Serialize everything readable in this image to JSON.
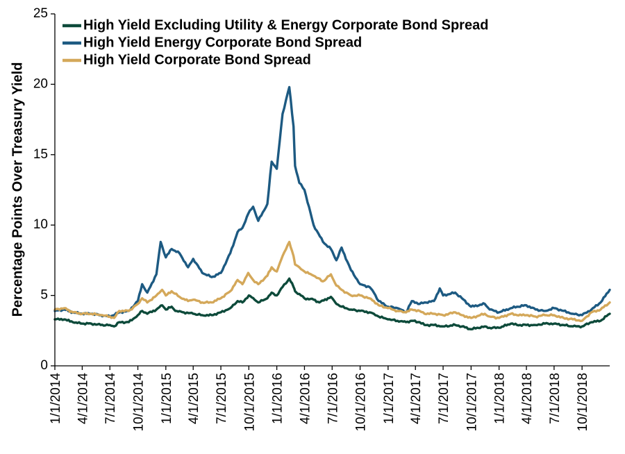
{
  "chart_data": {
    "type": "line",
    "title": "",
    "xlabel": "",
    "ylabel": "Percentage Points Over Treasury Yield",
    "ylim": [
      0,
      25
    ],
    "yticks": [
      "0",
      "5",
      "10",
      "15",
      "20",
      "25"
    ],
    "xlim": [
      "2014-01-01",
      "2018-12-31"
    ],
    "xticks": [
      "1/1/2014",
      "4/1/2014",
      "7/1/2014",
      "10/1/2014",
      "1/1/2015",
      "4/1/2015",
      "7/1/2015",
      "10/1/2015",
      "1/1/2016",
      "4/1/2016",
      "7/1/2016",
      "10/1/2016",
      "1/1/2017",
      "4/1/2017",
      "7/1/2017",
      "10/1/2017",
      "1/1/2018",
      "4/1/2018",
      "7/1/2018",
      "10/1/2018"
    ],
    "grid": false,
    "legend_position": "top-left",
    "series": [
      {
        "name": "High Yield Excluding Utility & Energy Corporate Bond Spread",
        "color": "#0d4a3a",
        "points": [
          [
            "2014-01-01",
            3.3
          ],
          [
            "2014-02-01",
            3.3
          ],
          [
            "2014-03-01",
            3.1
          ],
          [
            "2014-04-01",
            3.0
          ],
          [
            "2014-05-01",
            3.0
          ],
          [
            "2014-06-01",
            2.9
          ],
          [
            "2014-07-01",
            2.9
          ],
          [
            "2014-07-15",
            2.8
          ],
          [
            "2014-08-01",
            3.1
          ],
          [
            "2014-09-01",
            3.1
          ],
          [
            "2014-10-01",
            3.6
          ],
          [
            "2014-10-15",
            3.9
          ],
          [
            "2014-11-01",
            3.7
          ],
          [
            "2014-12-01",
            4.0
          ],
          [
            "2014-12-20",
            4.3
          ],
          [
            "2015-01-01",
            4.0
          ],
          [
            "2015-01-20",
            4.2
          ],
          [
            "2015-02-01",
            3.9
          ],
          [
            "2015-03-01",
            3.8
          ],
          [
            "2015-04-01",
            3.7
          ],
          [
            "2015-05-01",
            3.6
          ],
          [
            "2015-06-01",
            3.6
          ],
          [
            "2015-07-01",
            3.8
          ],
          [
            "2015-08-01",
            4.1
          ],
          [
            "2015-08-25",
            4.6
          ],
          [
            "2015-09-10",
            4.5
          ],
          [
            "2015-10-01",
            5.0
          ],
          [
            "2015-10-20",
            4.7
          ],
          [
            "2015-11-01",
            4.5
          ],
          [
            "2015-12-01",
            4.8
          ],
          [
            "2015-12-15",
            5.2
          ],
          [
            "2016-01-01",
            5.0
          ],
          [
            "2016-01-20",
            5.6
          ],
          [
            "2016-02-11",
            6.2
          ],
          [
            "2016-02-25",
            5.6
          ],
          [
            "2016-03-01",
            5.3
          ],
          [
            "2016-03-20",
            5.0
          ],
          [
            "2016-04-01",
            4.8
          ],
          [
            "2016-05-01",
            4.7
          ],
          [
            "2016-05-20",
            4.5
          ],
          [
            "2016-06-27",
            4.9
          ],
          [
            "2016-07-15",
            4.4
          ],
          [
            "2016-08-01",
            4.2
          ],
          [
            "2016-09-01",
            4.0
          ],
          [
            "2016-10-01",
            3.9
          ],
          [
            "2016-11-01",
            3.8
          ],
          [
            "2016-11-15",
            3.7
          ],
          [
            "2016-12-01",
            3.5
          ],
          [
            "2017-01-01",
            3.3
          ],
          [
            "2017-02-01",
            3.2
          ],
          [
            "2017-03-01",
            3.1
          ],
          [
            "2017-03-20",
            3.2
          ],
          [
            "2017-04-15",
            3.1
          ],
          [
            "2017-05-01",
            2.9
          ],
          [
            "2017-06-01",
            2.9
          ],
          [
            "2017-07-01",
            2.8
          ],
          [
            "2017-08-10",
            2.9
          ],
          [
            "2017-09-01",
            2.8
          ],
          [
            "2017-10-01",
            2.6
          ],
          [
            "2017-11-15",
            2.8
          ],
          [
            "2017-12-01",
            2.7
          ],
          [
            "2018-01-01",
            2.7
          ],
          [
            "2018-02-09",
            3.0
          ],
          [
            "2018-03-01",
            2.9
          ],
          [
            "2018-04-01",
            2.9
          ],
          [
            "2018-05-01",
            2.9
          ],
          [
            "2018-06-01",
            3.0
          ],
          [
            "2018-07-01",
            3.0
          ],
          [
            "2018-08-01",
            2.9
          ],
          [
            "2018-09-01",
            2.8
          ],
          [
            "2018-10-01",
            2.8
          ],
          [
            "2018-11-01",
            3.1
          ],
          [
            "2018-12-01",
            3.2
          ],
          [
            "2018-12-31",
            3.7
          ]
        ]
      },
      {
        "name": "High Yield Energy Corporate Bond Spread",
        "color": "#1d5a82",
        "points": [
          [
            "2014-01-01",
            3.9
          ],
          [
            "2014-02-01",
            4.0
          ],
          [
            "2014-03-01",
            3.8
          ],
          [
            "2014-04-01",
            3.7
          ],
          [
            "2014-05-01",
            3.7
          ],
          [
            "2014-06-01",
            3.6
          ],
          [
            "2014-07-01",
            3.5
          ],
          [
            "2014-08-01",
            3.8
          ],
          [
            "2014-09-01",
            3.9
          ],
          [
            "2014-10-01",
            4.6
          ],
          [
            "2014-10-15",
            5.8
          ],
          [
            "2014-11-01",
            5.2
          ],
          [
            "2014-12-01",
            6.5
          ],
          [
            "2014-12-15",
            8.8
          ],
          [
            "2015-01-01",
            7.7
          ],
          [
            "2015-01-20",
            8.3
          ],
          [
            "2015-02-15",
            8.0
          ],
          [
            "2015-03-15",
            7.0
          ],
          [
            "2015-04-01",
            7.6
          ],
          [
            "2015-05-01",
            6.6
          ],
          [
            "2015-06-01",
            6.3
          ],
          [
            "2015-07-01",
            6.6
          ],
          [
            "2015-08-01",
            8.0
          ],
          [
            "2015-08-25",
            9.5
          ],
          [
            "2015-09-10",
            9.8
          ],
          [
            "2015-09-29",
            10.8
          ],
          [
            "2015-10-15",
            11.3
          ],
          [
            "2015-11-01",
            10.3
          ],
          [
            "2015-12-01",
            11.5
          ],
          [
            "2015-12-15",
            14.5
          ],
          [
            "2016-01-01",
            14.0
          ],
          [
            "2016-01-20",
            17.9
          ],
          [
            "2016-02-11",
            19.8
          ],
          [
            "2016-02-25",
            17.0
          ],
          [
            "2016-03-01",
            14.2
          ],
          [
            "2016-03-15",
            13.0
          ],
          [
            "2016-04-01",
            12.5
          ],
          [
            "2016-05-01",
            10.0
          ],
          [
            "2016-06-01",
            8.8
          ],
          [
            "2016-06-27",
            8.3
          ],
          [
            "2016-07-15",
            7.5
          ],
          [
            "2016-08-01",
            8.4
          ],
          [
            "2016-08-20",
            7.4
          ],
          [
            "2016-09-01",
            6.8
          ],
          [
            "2016-10-01",
            5.8
          ],
          [
            "2016-11-01",
            5.6
          ],
          [
            "2016-11-15",
            5.2
          ],
          [
            "2016-12-01",
            4.6
          ],
          [
            "2017-01-01",
            4.2
          ],
          [
            "2017-02-01",
            4.1
          ],
          [
            "2017-03-01",
            3.8
          ],
          [
            "2017-03-20",
            4.6
          ],
          [
            "2017-04-15",
            4.4
          ],
          [
            "2017-05-01",
            4.5
          ],
          [
            "2017-06-01",
            4.6
          ],
          [
            "2017-06-20",
            5.5
          ],
          [
            "2017-07-01",
            5.0
          ],
          [
            "2017-08-10",
            5.2
          ],
          [
            "2017-09-01",
            4.8
          ],
          [
            "2017-10-01",
            4.2
          ],
          [
            "2017-11-15",
            4.4
          ],
          [
            "2017-12-01",
            4.0
          ],
          [
            "2018-01-01",
            3.8
          ],
          [
            "2018-02-09",
            4.1
          ],
          [
            "2018-03-01",
            4.2
          ],
          [
            "2018-04-01",
            4.3
          ],
          [
            "2018-05-01",
            4.0
          ],
          [
            "2018-06-01",
            3.9
          ],
          [
            "2018-07-01",
            4.1
          ],
          [
            "2018-08-01",
            3.9
          ],
          [
            "2018-09-01",
            3.7
          ],
          [
            "2018-10-01",
            3.6
          ],
          [
            "2018-11-01",
            4.0
          ],
          [
            "2018-12-01",
            4.5
          ],
          [
            "2018-12-31",
            5.4
          ]
        ]
      },
      {
        "name": "High Yield Corporate Bond Spread",
        "color": "#d4a85a",
        "points": [
          [
            "2014-01-01",
            4.0
          ],
          [
            "2014-02-01",
            4.1
          ],
          [
            "2014-03-01",
            3.8
          ],
          [
            "2014-04-01",
            3.7
          ],
          [
            "2014-05-01",
            3.7
          ],
          [
            "2014-06-01",
            3.6
          ],
          [
            "2014-07-01",
            3.5
          ],
          [
            "2014-07-15",
            3.4
          ],
          [
            "2014-08-01",
            3.9
          ],
          [
            "2014-09-01",
            3.9
          ],
          [
            "2014-10-01",
            4.4
          ],
          [
            "2014-10-15",
            4.8
          ],
          [
            "2014-11-01",
            4.5
          ],
          [
            "2014-12-01",
            5.0
          ],
          [
            "2014-12-20",
            5.4
          ],
          [
            "2015-01-01",
            5.0
          ],
          [
            "2015-01-20",
            5.3
          ],
          [
            "2015-02-15",
            4.9
          ],
          [
            "2015-03-15",
            4.6
          ],
          [
            "2015-04-01",
            4.7
          ],
          [
            "2015-05-01",
            4.5
          ],
          [
            "2015-06-01",
            4.5
          ],
          [
            "2015-07-01",
            4.8
          ],
          [
            "2015-08-01",
            5.3
          ],
          [
            "2015-08-25",
            6.1
          ],
          [
            "2015-09-10",
            5.8
          ],
          [
            "2015-09-29",
            6.6
          ],
          [
            "2015-10-15",
            6.1
          ],
          [
            "2015-11-01",
            5.8
          ],
          [
            "2015-12-01",
            6.4
          ],
          [
            "2015-12-15",
            7.0
          ],
          [
            "2016-01-01",
            6.7
          ],
          [
            "2016-01-20",
            7.8
          ],
          [
            "2016-02-11",
            8.8
          ],
          [
            "2016-02-25",
            7.8
          ],
          [
            "2016-03-01",
            7.2
          ],
          [
            "2016-03-15",
            7.0
          ],
          [
            "2016-04-01",
            6.7
          ],
          [
            "2016-05-01",
            6.4
          ],
          [
            "2016-06-01",
            6.0
          ],
          [
            "2016-06-27",
            6.5
          ],
          [
            "2016-07-15",
            5.7
          ],
          [
            "2016-08-01",
            5.4
          ],
          [
            "2016-09-01",
            5.0
          ],
          [
            "2016-10-01",
            5.0
          ],
          [
            "2016-11-01",
            4.8
          ],
          [
            "2016-11-15",
            4.6
          ],
          [
            "2016-12-01",
            4.3
          ],
          [
            "2017-01-01",
            4.1
          ],
          [
            "2017-02-01",
            3.9
          ],
          [
            "2017-03-01",
            3.8
          ],
          [
            "2017-03-20",
            4.0
          ],
          [
            "2017-04-15",
            3.9
          ],
          [
            "2017-05-01",
            3.7
          ],
          [
            "2017-06-01",
            3.7
          ],
          [
            "2017-07-01",
            3.6
          ],
          [
            "2017-08-10",
            3.8
          ],
          [
            "2017-09-01",
            3.6
          ],
          [
            "2017-10-01",
            3.4
          ],
          [
            "2017-11-15",
            3.7
          ],
          [
            "2017-12-01",
            3.5
          ],
          [
            "2018-01-01",
            3.4
          ],
          [
            "2018-02-09",
            3.7
          ],
          [
            "2018-03-01",
            3.6
          ],
          [
            "2018-04-01",
            3.6
          ],
          [
            "2018-05-01",
            3.5
          ],
          [
            "2018-06-01",
            3.6
          ],
          [
            "2018-07-01",
            3.6
          ],
          [
            "2018-08-01",
            3.4
          ],
          [
            "2018-09-01",
            3.3
          ],
          [
            "2018-10-01",
            3.2
          ],
          [
            "2018-11-01",
            3.8
          ],
          [
            "2018-12-01",
            4.0
          ],
          [
            "2018-12-31",
            4.5
          ]
        ]
      }
    ]
  }
}
